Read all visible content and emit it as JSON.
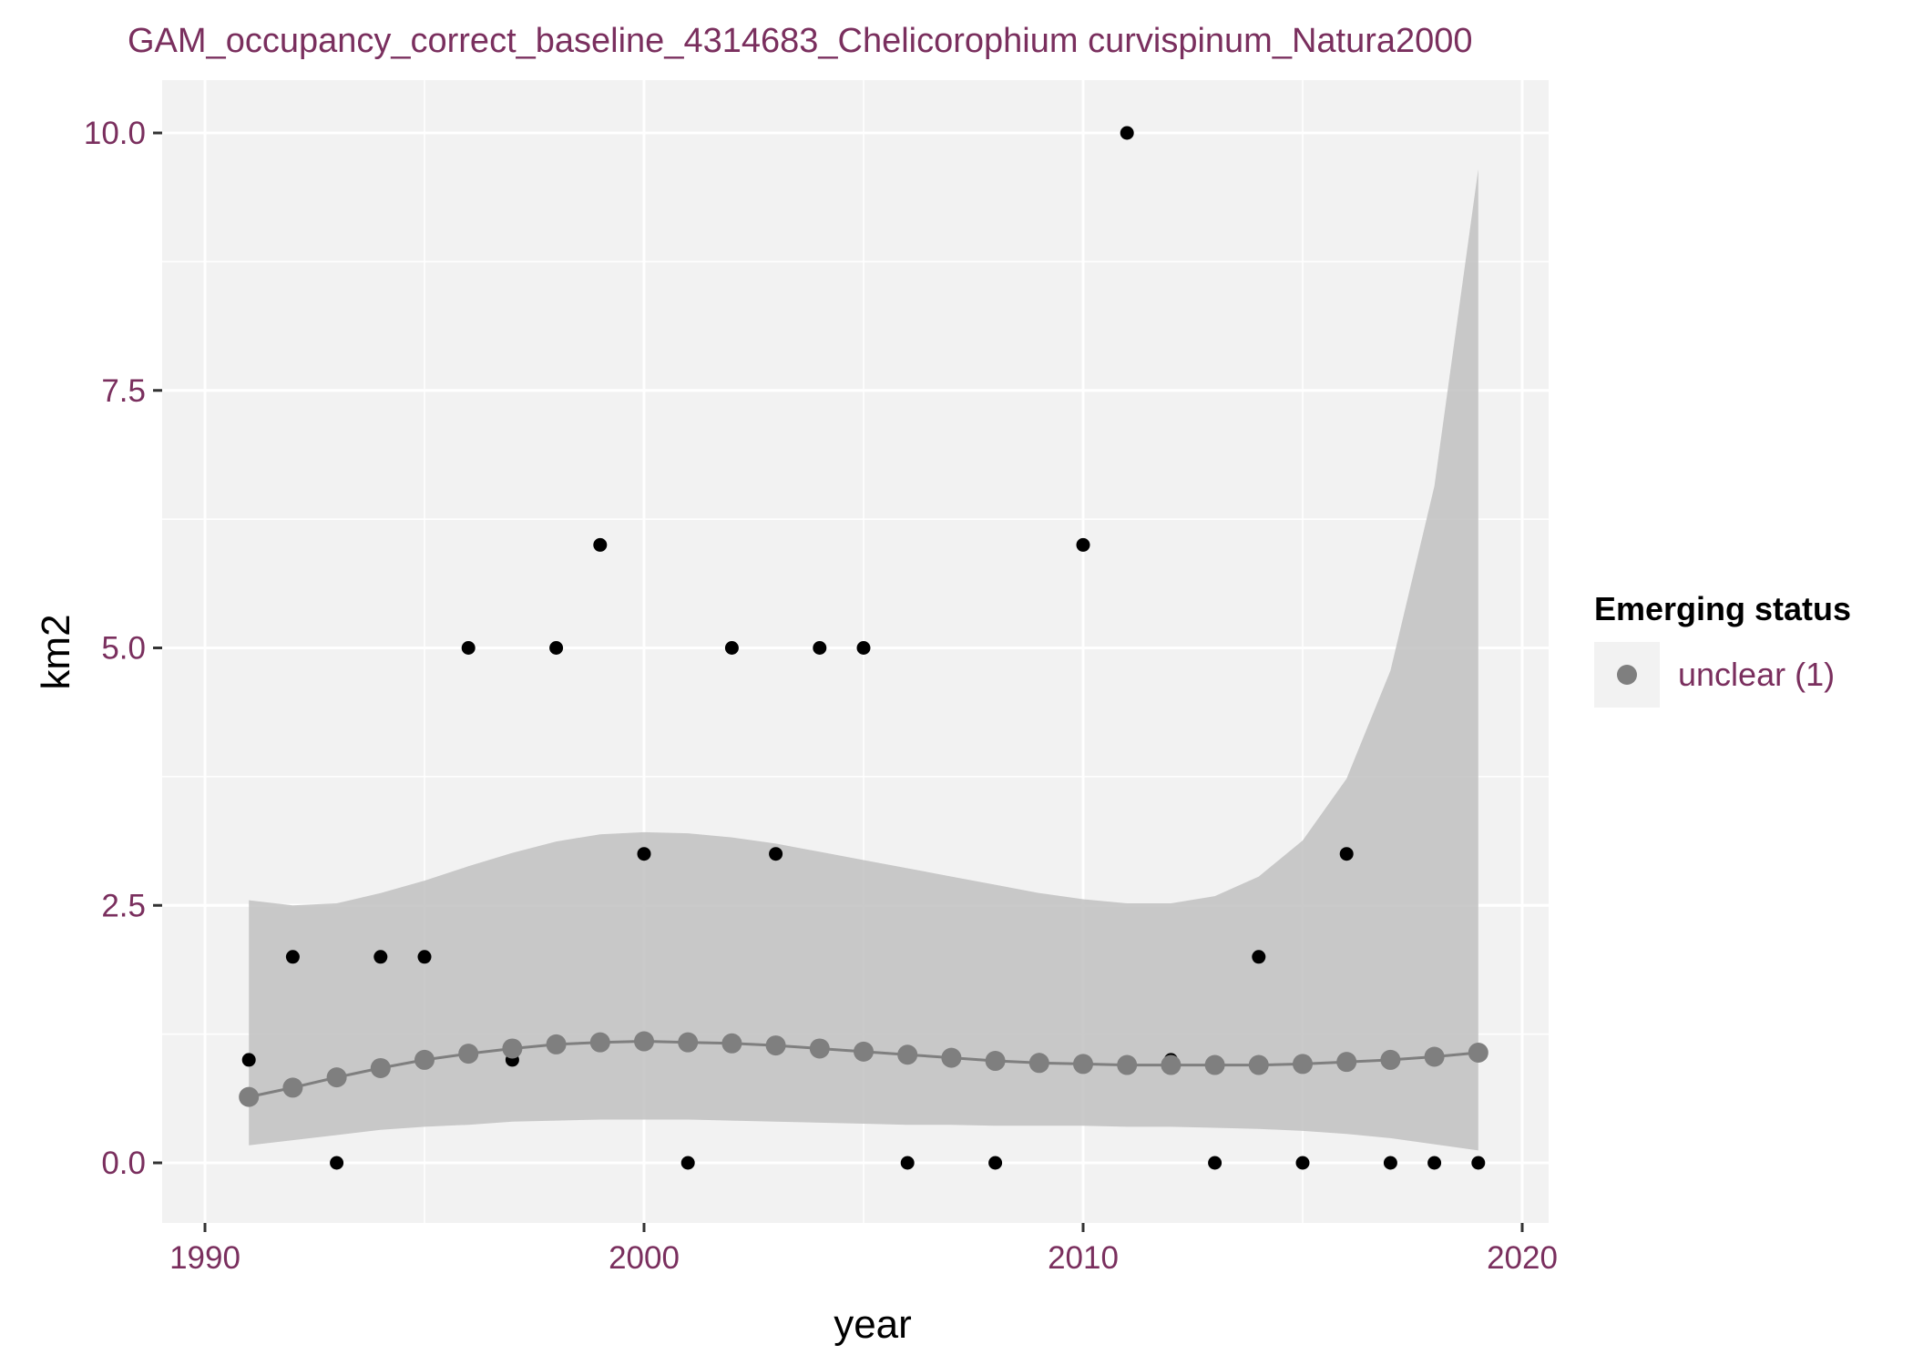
{
  "chart_data": {
    "type": "scatter",
    "title": "GAM_occupancy_correct_baseline_4314683_Chelicorophium curvispinum_Natura2000",
    "xlabel": "year",
    "ylabel": "km2",
    "xlim": [
      1990,
      2020
    ],
    "ylim": [
      0,
      10
    ],
    "x_ticks": [
      1990,
      2000,
      2010,
      2020
    ],
    "x_tick_labels": [
      "1990",
      "2000",
      "2010",
      "2020"
    ],
    "y_ticks": [
      0,
      2.5,
      5,
      7.5,
      10
    ],
    "y_tick_labels": [
      "0.0",
      "2.5",
      "5.0",
      "7.5",
      "10.0"
    ],
    "grid": true,
    "legend": {
      "title": "Emerging status",
      "placement": "right",
      "entries": [
        {
          "label": "unclear (1)",
          "color": "#7f7f7f"
        }
      ]
    },
    "colors": {
      "panel_background": "#f2f2f2",
      "grid": "#ffffff",
      "observed_points": "#000000",
      "fit": "#7f7f7f",
      "ribbon": "#bdbdbd",
      "text": "#7a2f5e"
    },
    "observed": {
      "x": [
        1991,
        1992,
        1993,
        1994,
        1995,
        1996,
        1997,
        1998,
        1999,
        2000,
        2001,
        2002,
        2003,
        2004,
        2005,
        2006,
        2008,
        2009,
        2010,
        2011,
        2012,
        2013,
        2014,
        2015,
        2016,
        2017,
        2018,
        2019
      ],
      "y": [
        1,
        2,
        0,
        2,
        2,
        5,
        1,
        5,
        6,
        3,
        0,
        5,
        3,
        5,
        5,
        0,
        0,
        1,
        6,
        10,
        1,
        0,
        2,
        0,
        3,
        0,
        0,
        0
      ]
    },
    "fit": {
      "x": [
        1991,
        1992,
        1993,
        1994,
        1995,
        1996,
        1997,
        1998,
        1999,
        2000,
        2001,
        2002,
        2003,
        2004,
        2005,
        2006,
        2007,
        2008,
        2009,
        2010,
        2011,
        2012,
        2013,
        2014,
        2015,
        2016,
        2017,
        2018,
        2019
      ],
      "y": [
        0.64,
        0.73,
        0.83,
        0.92,
        1.0,
        1.06,
        1.11,
        1.15,
        1.17,
        1.18,
        1.17,
        1.16,
        1.14,
        1.11,
        1.08,
        1.05,
        1.02,
        0.99,
        0.97,
        0.96,
        0.95,
        0.95,
        0.95,
        0.95,
        0.96,
        0.98,
        1.0,
        1.03,
        1.07
      ],
      "lower": [
        0.17,
        0.22,
        0.27,
        0.32,
        0.35,
        0.37,
        0.4,
        0.41,
        0.42,
        0.42,
        0.42,
        0.41,
        0.4,
        0.39,
        0.38,
        0.37,
        0.37,
        0.36,
        0.36,
        0.36,
        0.35,
        0.35,
        0.34,
        0.33,
        0.31,
        0.28,
        0.24,
        0.18,
        0.12
      ],
      "upper": [
        2.55,
        2.5,
        2.52,
        2.62,
        2.74,
        2.88,
        3.01,
        3.12,
        3.19,
        3.21,
        3.2,
        3.16,
        3.1,
        3.02,
        2.94,
        2.86,
        2.78,
        2.7,
        2.62,
        2.56,
        2.52,
        2.52,
        2.59,
        2.78,
        3.13,
        3.73,
        4.78,
        6.57,
        9.65
      ]
    }
  }
}
